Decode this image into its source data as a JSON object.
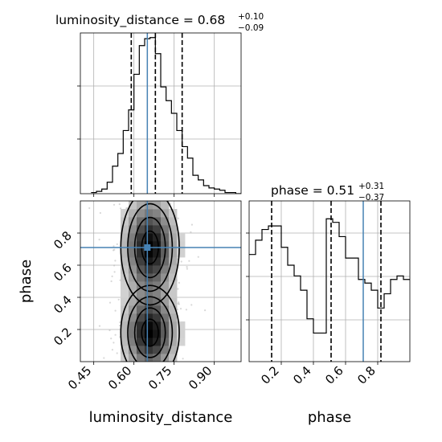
{
  "chart_data": {
    "type": "corner",
    "parameters": [
      "luminosity_distance",
      "phase"
    ],
    "truth": {
      "luminosity_distance": 0.65,
      "phase": 0.71
    },
    "panels": [
      {
        "panel": "luminosity_distance-marginal",
        "type": "histogram",
        "title_label": "luminosity_distance = 0.68",
        "title_plus": "+0.10",
        "title_minus": "−0.09",
        "xlim": [
          0.4,
          1.0
        ],
        "bin_edges": [
          0.44,
          0.46,
          0.48,
          0.5,
          0.52,
          0.54,
          0.56,
          0.58,
          0.6,
          0.62,
          0.64,
          0.66,
          0.68,
          0.7,
          0.72,
          0.74,
          0.76,
          0.78,
          0.8,
          0.82,
          0.84,
          0.86,
          0.88,
          0.9,
          0.92,
          0.94,
          0.96,
          0.98,
          1.0
        ],
        "counts": [
          1,
          2,
          4,
          10,
          24,
          35,
          55,
          73,
          104,
          129,
          135,
          136,
          122,
          93,
          81,
          70,
          55,
          41,
          31,
          16,
          12,
          7,
          5,
          4,
          3,
          1,
          1,
          0
        ],
        "ylim": [
          0,
          140
        ],
        "quantiles": [
          0.59,
          0.68,
          0.78
        ],
        "truth": 0.65
      },
      {
        "panel": "phase-vs-luminosity_distance",
        "type": "2d-density",
        "xlim": [
          0.4,
          1.0
        ],
        "ylim": [
          0.0,
          1.0
        ],
        "modes": [
          {
            "x_center": 0.66,
            "y_center": 0.18,
            "x_sigma": 0.052,
            "y_sigma": 0.14
          },
          {
            "x_center": 0.66,
            "y_center": 0.71,
            "x_sigma": 0.052,
            "y_sigma": 0.17
          }
        ],
        "x_ticks": [
          "0.45",
          "0.60",
          "0.75",
          "0.90"
        ],
        "x_tick_values": [
          0.45,
          0.6,
          0.75,
          0.9
        ],
        "y_ticks": [
          "0.2",
          "0.4",
          "0.6",
          "0.8"
        ],
        "y_tick_values": [
          0.2,
          0.4,
          0.6,
          0.8
        ],
        "xlabel": "luminosity_distance",
        "ylabel": "phase",
        "truth": [
          0.65,
          0.71
        ]
      },
      {
        "panel": "phase-marginal",
        "type": "histogram",
        "title_label": "phase = 0.51",
        "title_plus": "+0.31",
        "title_minus": "−0.37",
        "xlim": [
          0.0,
          1.0
        ],
        "bin_edges": [
          0.0,
          0.04,
          0.08,
          0.12,
          0.16,
          0.2,
          0.24,
          0.28,
          0.32,
          0.36,
          0.4,
          0.44,
          0.48,
          0.52,
          0.56,
          0.6,
          0.64,
          0.68,
          0.72,
          0.76,
          0.8,
          0.84,
          0.88,
          0.92,
          0.96,
          1.0
        ],
        "counts": [
          30,
          34,
          37,
          38,
          38,
          32,
          27,
          24,
          20,
          12,
          8,
          8,
          40,
          39,
          35,
          29,
          29,
          23,
          22,
          20,
          15,
          19,
          23,
          24,
          23
        ],
        "ylim": [
          0,
          45
        ],
        "quantiles": [
          0.14,
          0.51,
          0.82
        ],
        "truth": 0.71,
        "x_ticks": [
          "0.2",
          "0.4",
          "0.6",
          "0.8"
        ],
        "x_tick_values": [
          0.2,
          0.4,
          0.6,
          0.8
        ],
        "xlabel": "phase"
      }
    ],
    "grid": true,
    "colors": {
      "hist": "#000000",
      "truth": "#4682b4",
      "quantile": "#000000",
      "grid": "#b0b0b0",
      "density": "#000000"
    }
  }
}
